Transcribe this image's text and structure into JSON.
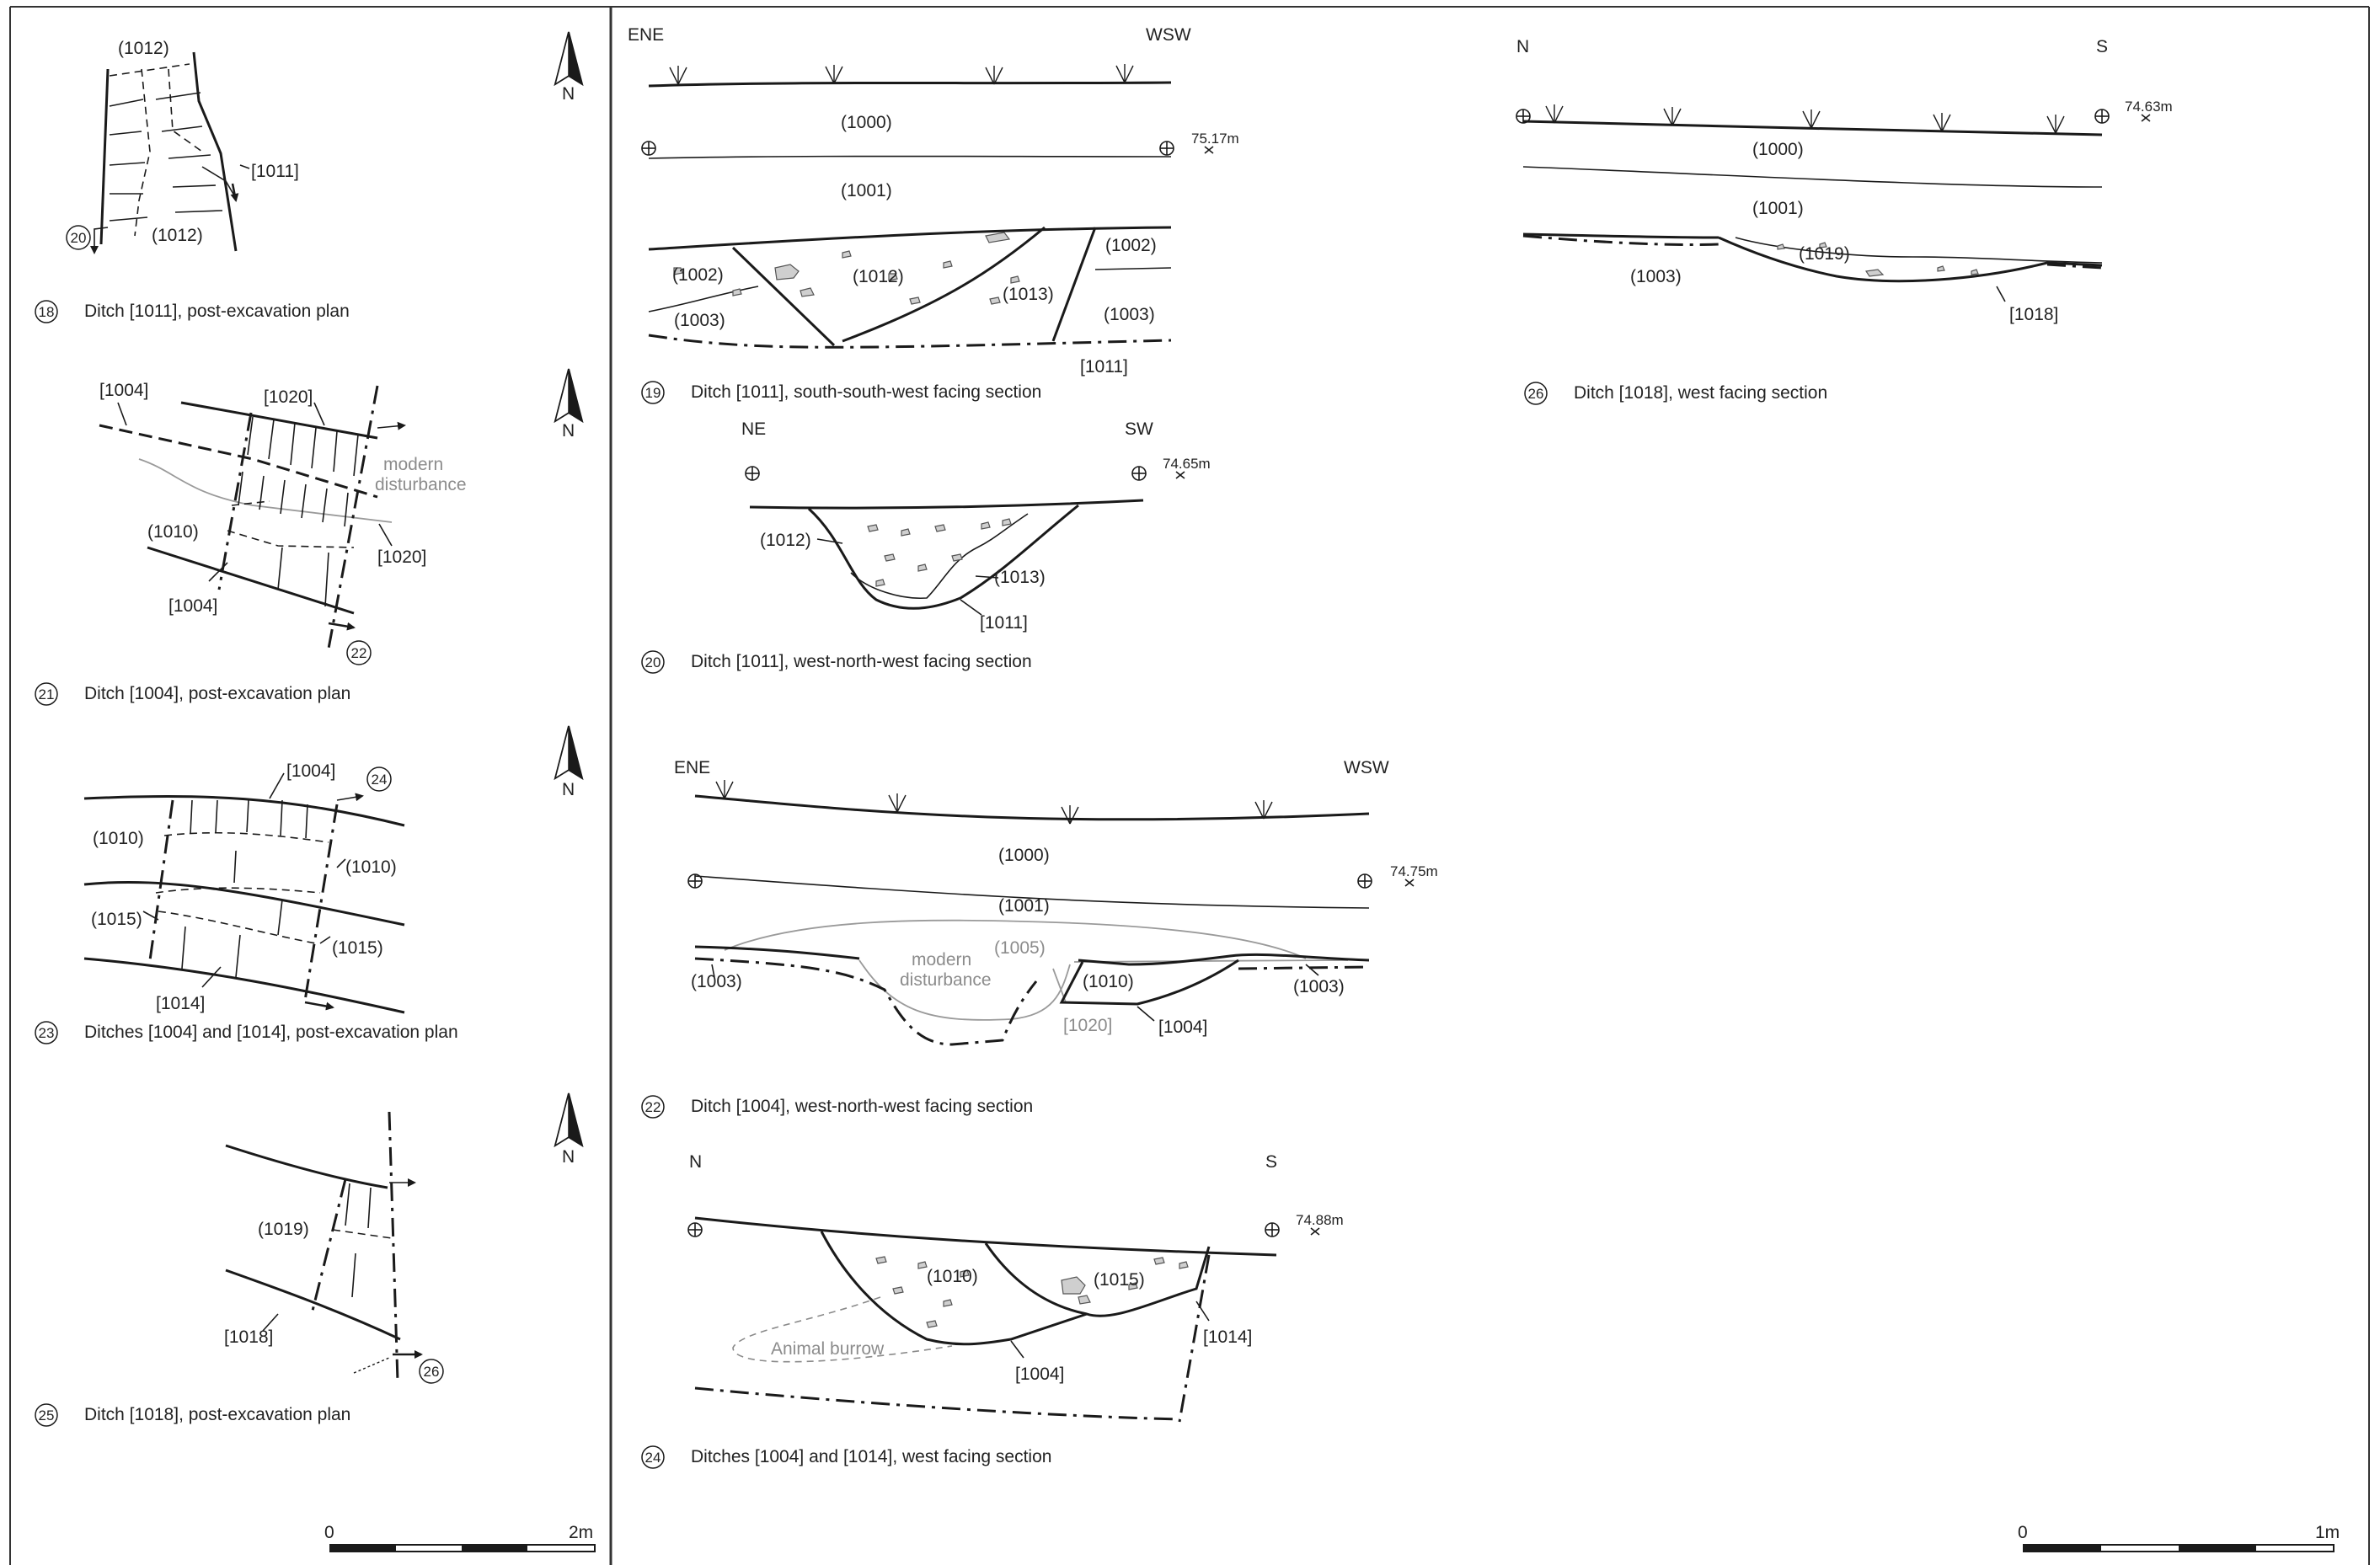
{
  "plans": {
    "p18": {
      "number": "18",
      "caption": "Ditch [1011], post-excavation plan",
      "labels": [
        "(1012)",
        "[1011]",
        "(1012)"
      ],
      "ref": "20"
    },
    "p21": {
      "number": "21",
      "caption": "Ditch [1004], post-excavation plan",
      "labels": [
        "[1004]",
        "[1020]",
        "modern",
        "disturbance",
        "(1010)",
        "[1020]",
        "[1004]"
      ],
      "ref": "22"
    },
    "p23": {
      "number": "23",
      "caption": "Ditches [1004] and [1014], post-excavation plan",
      "labels": [
        "[1004]",
        "(1010)",
        "(1010)",
        "(1015)",
        "(1015)",
        "[1014]"
      ],
      "ref": "24"
    },
    "p25": {
      "number": "25",
      "caption": "Ditch [1018], post-excavation plan",
      "labels": [
        "(1019)",
        "[1018]"
      ],
      "ref": "26"
    }
  },
  "north": "N",
  "sections": {
    "s19": {
      "number": "19",
      "caption": "Ditch [1011], south-south-west facing section",
      "left": "ENE",
      "right": "WSW",
      "level": "75.17m",
      "labels": [
        "(1000)",
        "(1001)",
        "(1002)",
        "(1002)",
        "(1012)",
        "(1013)",
        "(1003)",
        "(1003)",
        "[1011]"
      ]
    },
    "s20": {
      "number": "20",
      "caption": "Ditch [1011], west-north-west facing section",
      "left": "NE",
      "right": "SW",
      "level": "74.65m",
      "labels": [
        "(1012)",
        "(1013)",
        "[1011]"
      ]
    },
    "s22": {
      "number": "22",
      "caption": "Ditch [1004], west-north-west facing section",
      "left": "ENE",
      "right": "WSW",
      "level": "74.75m",
      "labels": [
        "(1000)",
        "(1001)",
        "(1005)",
        "modern",
        "disturbance",
        "(1003)",
        "(1010)",
        "(1003)",
        "[1020]",
        "[1004]"
      ]
    },
    "s24": {
      "number": "24",
      "caption": "Ditches [1004] and [1014], west facing section",
      "left": "N",
      "right": "S",
      "level": "74.88m",
      "labels": [
        "(1010)",
        "(1015)",
        "Animal burrow",
        "[1004]",
        "[1014]"
      ]
    },
    "s26": {
      "number": "26",
      "caption": "Ditch [1018], west facing section",
      "left": "N",
      "right": "S",
      "level": "74.63m",
      "labels": [
        "(1000)",
        "(1001)",
        "(1019)",
        "(1003)",
        "[1018]"
      ]
    }
  },
  "scales": {
    "plan": {
      "start": "0",
      "end": "2m"
    },
    "section": {
      "start": "0",
      "end": "1m"
    }
  }
}
